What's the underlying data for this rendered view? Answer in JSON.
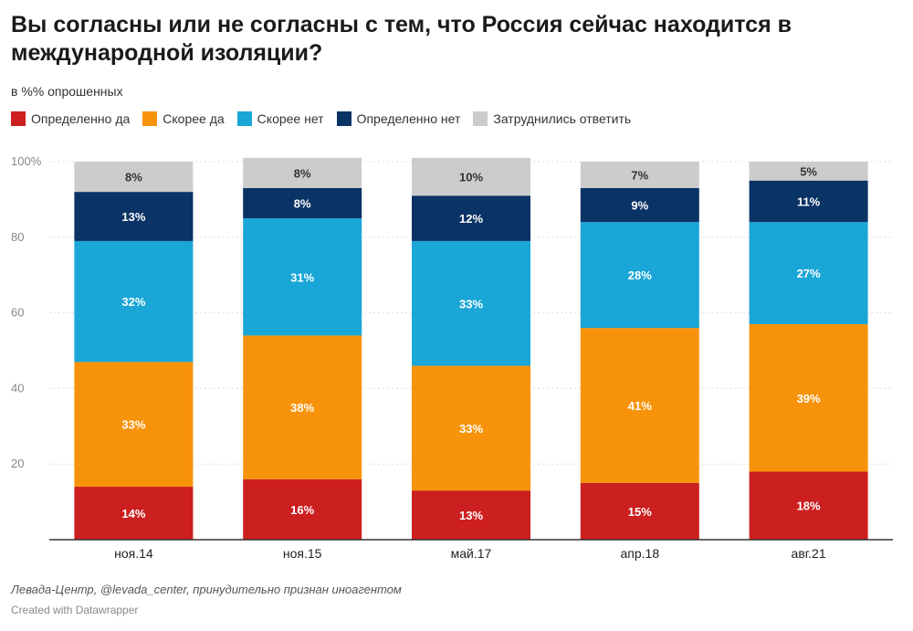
{
  "title": "Вы согласны или не согласны с тем, что Россия сейчас находится в международной изоляции?",
  "subtitle": "в %% опрошенных",
  "legend": [
    {
      "label": "Определенно да",
      "color": "#cc1f1f"
    },
    {
      "label": "Скорее да",
      "color": "#f7930a"
    },
    {
      "label": "Скорее нет",
      "color": "#1aa6d6"
    },
    {
      "label": "Определенно нет",
      "color": "#0a3366"
    },
    {
      "label": "Затруднились ответить",
      "color": "#cccccc"
    }
  ],
  "source": "Левада-Центр, @levada_center, принудительно признан иноагентом",
  "credit": "Created with Datawrapper",
  "chart_data": {
    "type": "bar",
    "stacked": true,
    "categories": [
      "ноя.14",
      "ноя.15",
      "май.17",
      "апр.18",
      "авг.21"
    ],
    "series": [
      {
        "name": "Определенно да",
        "color": "#cc1f1f",
        "label_color": "#ffffff",
        "values": [
          14,
          16,
          13,
          15,
          18
        ]
      },
      {
        "name": "Скорее да",
        "color": "#f7930a",
        "label_color": "#ffffff",
        "values": [
          33,
          38,
          33,
          41,
          39
        ]
      },
      {
        "name": "Скорее нет",
        "color": "#1aa6d6",
        "label_color": "#ffffff",
        "values": [
          32,
          31,
          33,
          28,
          27
        ]
      },
      {
        "name": "Определенно нет",
        "color": "#0a3366",
        "label_color": "#ffffff",
        "values": [
          13,
          8,
          12,
          9,
          11
        ]
      },
      {
        "name": "Затруднились ответить",
        "color": "#cccccc",
        "label_color": "#333333",
        "values": [
          8,
          8,
          10,
          7,
          5
        ]
      }
    ],
    "ylim": [
      0,
      100
    ],
    "yticks": [
      20,
      40,
      60,
      80,
      100
    ],
    "ytick_labels": [
      "20",
      "40",
      "60",
      "80",
      "100%"
    ],
    "grid": true,
    "legend_position": "top-left"
  }
}
